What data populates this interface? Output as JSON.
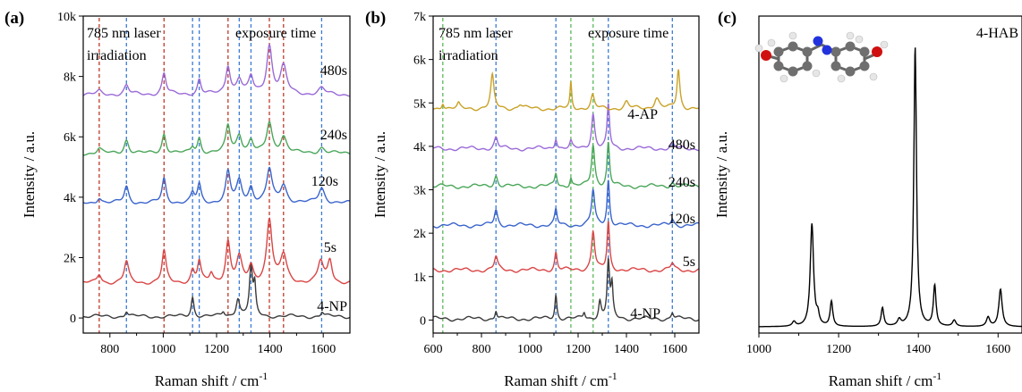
{
  "chart_data": [
    {
      "panel": "(a)",
      "type": "line",
      "xlabel": "Raman shift / cm",
      "xlabel_sup": "-1",
      "ylabel": "Intensity / a.u.",
      "xlim": [
        700,
        1700
      ],
      "ylim": [
        -500,
        10000
      ],
      "xticks": [
        800,
        1000,
        1200,
        1400,
        1600
      ],
      "yticks": [
        0,
        2000,
        4000,
        6000,
        8000,
        10000
      ],
      "ytick_labels": [
        "0",
        "2k",
        "4k",
        "6k",
        "8k",
        "10k"
      ],
      "annotations": [
        "785 nm laser",
        "irradiation",
        "exposure time"
      ],
      "red_dashed_lines": [
        760,
        1003,
        1243,
        1398,
        1451
      ],
      "blue_dashed_lines": [
        862,
        1110,
        1135,
        1285,
        1329,
        1594
      ],
      "series": [
        {
          "label": "4-NP",
          "color": "#3b3b3b",
          "baseline": 50,
          "peaks": [
            [
              862,
              180,
              6
            ],
            [
              1110,
              650,
              6
            ],
            [
              1225,
              150,
              6
            ],
            [
              1280,
              600,
              8
            ],
            [
              1329,
              1600,
              7
            ],
            [
              1343,
              900,
              5
            ],
            [
              1596,
              150,
              6
            ]
          ]
        },
        {
          "label": "5s",
          "color": "#d94545",
          "baseline": 1150,
          "peaks": [
            [
              760,
              300,
              10
            ],
            [
              862,
              700,
              10
            ],
            [
              1003,
              1050,
              9
            ],
            [
              1110,
              400,
              8
            ],
            [
              1135,
              700,
              8
            ],
            [
              1180,
              300,
              8
            ],
            [
              1243,
              1350,
              10
            ],
            [
              1285,
              800,
              12
            ],
            [
              1329,
              500,
              10
            ],
            [
              1398,
              2100,
              12
            ],
            [
              1451,
              900,
              14
            ],
            [
              1590,
              700,
              12
            ],
            [
              1625,
              750,
              10
            ]
          ]
        },
        {
          "label": "120s",
          "color": "#3a64cc",
          "baseline": 3800,
          "peaks": [
            [
              760,
              200,
              10
            ],
            [
              862,
              550,
              10
            ],
            [
              1003,
              800,
              9
            ],
            [
              1110,
              300,
              8
            ],
            [
              1135,
              600,
              8
            ],
            [
              1243,
              1000,
              10
            ],
            [
              1285,
              700,
              12
            ],
            [
              1329,
              500,
              10
            ],
            [
              1398,
              1100,
              12
            ],
            [
              1451,
              600,
              14
            ],
            [
              1594,
              500,
              14
            ]
          ]
        },
        {
          "label": "240s",
          "color": "#4aa65a",
          "baseline": 5450,
          "peaks": [
            [
              760,
              150,
              10
            ],
            [
              862,
              450,
              10
            ],
            [
              1003,
              650,
              9
            ],
            [
              1110,
              200,
              8
            ],
            [
              1135,
              500,
              8
            ],
            [
              1243,
              900,
              10
            ],
            [
              1285,
              600,
              12
            ],
            [
              1329,
              400,
              10
            ],
            [
              1398,
              1000,
              12
            ],
            [
              1451,
              550,
              14
            ],
            [
              1594,
              200,
              14
            ]
          ]
        },
        {
          "label": "480s",
          "color": "#9a6ad8",
          "baseline": 7400,
          "peaks": [
            [
              760,
              100,
              10
            ],
            [
              862,
              300,
              10
            ],
            [
              1003,
              700,
              9
            ],
            [
              1135,
              500,
              8
            ],
            [
              1243,
              950,
              10
            ],
            [
              1285,
              500,
              12
            ],
            [
              1329,
              550,
              10
            ],
            [
              1398,
              1600,
              12
            ],
            [
              1451,
              900,
              14
            ],
            [
              1594,
              200,
              14
            ]
          ]
        }
      ]
    },
    {
      "panel": "(b)",
      "type": "line",
      "xlabel": "Raman shift / cm",
      "xlabel_sup": "-1",
      "ylabel": "Intensity / a.u.",
      "xlim": [
        600,
        1700
      ],
      "ylim": [
        -300,
        7000
      ],
      "xticks": [
        600,
        800,
        1000,
        1200,
        1400,
        1600
      ],
      "yticks": [
        0,
        1000,
        2000,
        3000,
        4000,
        5000,
        6000,
        7000
      ],
      "ytick_labels": [
        "0",
        "1k",
        "2k",
        "3k",
        "4k",
        "5k",
        "6k",
        "7k"
      ],
      "annotations": [
        "785 nm laser",
        "irradiation",
        "exposure time"
      ],
      "green_dashed_lines": [
        640,
        1170,
        1262
      ],
      "blue_dashed_lines": [
        860,
        1108,
        1325,
        1590
      ],
      "series": [
        {
          "label": "4-NP",
          "color": "#3b3b3b",
          "baseline": 30,
          "peaks": [
            [
              860,
              200,
              5
            ],
            [
              1108,
              550,
              5
            ],
            [
              1225,
              150,
              5
            ],
            [
              1290,
              400,
              6
            ],
            [
              1325,
              1300,
              6
            ],
            [
              1340,
              700,
              5
            ],
            [
              1590,
              150,
              6
            ]
          ]
        },
        {
          "label": "5s",
          "color": "#d94545",
          "baseline": 1150,
          "peaks": [
            [
              860,
              300,
              8
            ],
            [
              1108,
              400,
              6
            ],
            [
              1262,
              900,
              8
            ],
            [
              1325,
              1100,
              6
            ],
            [
              1590,
              150,
              8
            ]
          ]
        },
        {
          "label": "120s",
          "color": "#3a64cc",
          "baseline": 2180,
          "peaks": [
            [
              860,
              350,
              8
            ],
            [
              1108,
              350,
              6
            ],
            [
              1262,
              800,
              8
            ],
            [
              1325,
              1050,
              6
            ],
            [
              1590,
              150,
              8
            ]
          ]
        },
        {
          "label": "240s",
          "color": "#4aa65a",
          "baseline": 3080,
          "peaks": [
            [
              860,
              250,
              8
            ],
            [
              1108,
              300,
              6
            ],
            [
              1170,
              200,
              5
            ],
            [
              1262,
              950,
              8
            ],
            [
              1325,
              1000,
              6
            ],
            [
              1590,
              100,
              8
            ]
          ]
        },
        {
          "label": "480s",
          "color": "#9a6ad8",
          "baseline": 3950,
          "peaks": [
            [
              860,
              250,
              8
            ],
            [
              1108,
              250,
              6
            ],
            [
              1170,
              150,
              5
            ],
            [
              1262,
              800,
              8
            ],
            [
              1325,
              1000,
              6
            ],
            [
              1590,
              100,
              8
            ]
          ]
        },
        {
          "label": "4-AP",
          "color": "#c9a227",
          "baseline": 4870,
          "peaks": [
            [
              640,
              150,
              6
            ],
            [
              705,
              100,
              6
            ],
            [
              845,
              750,
              8
            ],
            [
              960,
              100,
              10
            ],
            [
              1170,
              600,
              4
            ],
            [
              1260,
              300,
              8
            ],
            [
              1400,
              150,
              10
            ],
            [
              1525,
              250,
              12
            ],
            [
              1615,
              900,
              7
            ]
          ]
        }
      ]
    },
    {
      "panel": "(c)",
      "type": "line",
      "xlabel": "Raman shift / cm",
      "xlabel_sup": "-1",
      "ylabel": "Intensity / a.u.",
      "xlim": [
        1000,
        1660
      ],
      "ylim": [
        -0.2,
        10
      ],
      "xticks": [
        1000,
        1200,
        1400,
        1600
      ],
      "annotations": [
        "4-HAB"
      ],
      "series": [
        {
          "label": "4-HAB",
          "color": "#000000",
          "baseline": 0,
          "peaks": [
            [
              1088,
              0.15,
              5
            ],
            [
              1133,
              3.3,
              5
            ],
            [
              1148,
              0.3,
              4
            ],
            [
              1182,
              0.8,
              4
            ],
            [
              1310,
              0.6,
              4
            ],
            [
              1352,
              0.2,
              5
            ],
            [
              1392,
              9.0,
              4
            ],
            [
              1441,
              1.3,
              4
            ],
            [
              1490,
              0.2,
              5
            ],
            [
              1575,
              0.3,
              5
            ],
            [
              1606,
              1.2,
              5
            ]
          ]
        }
      ]
    }
  ]
}
